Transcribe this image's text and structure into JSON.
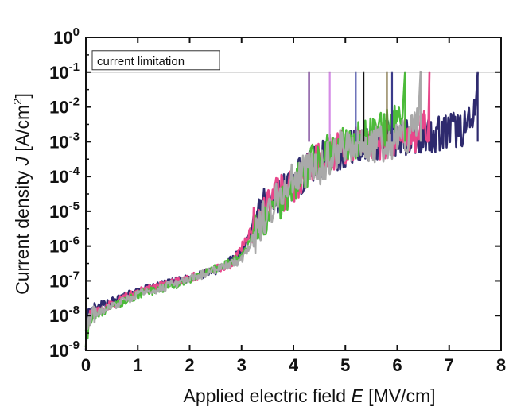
{
  "chart_data": {
    "type": "line",
    "title": "",
    "xlabel_parts": [
      "Applied electric field ",
      "E",
      " [MV/cm]"
    ],
    "ylabel_parts": [
      "Current density ",
      "J",
      " [A/cm",
      "2",
      "]"
    ],
    "xlim": [
      0,
      8
    ],
    "ylim": [
      1e-09,
      1
    ],
    "yscale": "log",
    "x_ticks": [
      0,
      1,
      2,
      3,
      4,
      5,
      6,
      7,
      8
    ],
    "y_ticks": [
      {
        "value": 1e-09,
        "base": "10",
        "exp": "-9"
      },
      {
        "value": 1e-08,
        "base": "10",
        "exp": "-8"
      },
      {
        "value": 1e-07,
        "base": "10",
        "exp": "-7"
      },
      {
        "value": 1e-06,
        "base": "10",
        "exp": "-6"
      },
      {
        "value": 1e-05,
        "base": "10",
        "exp": "-5"
      },
      {
        "value": 0.0001,
        "base": "10",
        "exp": "-4"
      },
      {
        "value": 0.001,
        "base": "10",
        "exp": "-3"
      },
      {
        "value": 0.01,
        "base": "10",
        "exp": "-2"
      },
      {
        "value": 0.1,
        "base": "10",
        "exp": "-1"
      },
      {
        "value": 1,
        "base": "10",
        "exp": "0"
      }
    ],
    "grid": false,
    "legend": "none",
    "reference_line": {
      "y": 0.1,
      "label": "current limitation"
    },
    "series": [
      {
        "color": "#2e2a6e",
        "x": [
          0,
          0.05,
          0.3,
          1,
          2,
          2.5,
          3,
          3.2,
          3.5,
          4,
          4.3,
          5,
          5.5,
          6,
          6.5,
          7,
          7.45,
          7.5,
          7.55
        ],
        "y": [
          1e-09,
          9e-09,
          2e-08,
          5e-08,
          1.2e-07,
          2e-07,
          7e-07,
          3e-06,
          2e-05,
          6e-05,
          0.0002,
          0.0006,
          0.001,
          0.0013,
          0.0016,
          0.002,
          0.003,
          0.006,
          0.1
        ]
      },
      {
        "color": "#e8478b",
        "x": [
          0,
          0.1,
          1,
          2,
          2.8,
          3.2,
          3.5,
          4,
          4.5,
          5,
          5.5,
          6,
          6.5,
          6.6,
          6.62
        ],
        "y": [
          3e-09,
          1.1e-08,
          5e-08,
          1.2e-07,
          3e-07,
          3e-06,
          2e-05,
          5e-05,
          0.0003,
          0.0007,
          0.001,
          0.0013,
          0.002,
          0.003,
          0.1
        ]
      },
      {
        "color": "#4cbb3a",
        "x": [
          0,
          0.1,
          1,
          2,
          3,
          3.3,
          4,
          4.5,
          5,
          5.5,
          5.9,
          6.1,
          6.15
        ],
        "y": [
          2e-09,
          9e-09,
          4e-08,
          1e-07,
          5e-07,
          3e-06,
          6e-05,
          0.0004,
          0.0008,
          0.0015,
          0.003,
          0.005,
          0.1
        ]
      },
      {
        "color": "#a9a9a9",
        "x": [
          0,
          0.1,
          1,
          2,
          3,
          3.5,
          4,
          4.5,
          5,
          5.5,
          6,
          6.3,
          6.4,
          6.45
        ],
        "y": [
          4e-09,
          1e-08,
          4e-08,
          1.1e-07,
          4e-07,
          1e-05,
          0.0001,
          0.0002,
          0.001,
          0.0008,
          0.001,
          0.002,
          0.003,
          0.11
        ]
      }
    ],
    "breakdown_spikes": [
      {
        "x": 4.3,
        "color": "#6a2b8a"
      },
      {
        "x": 4.7,
        "color": "#d58be6"
      },
      {
        "x": 5.2,
        "color": "#4b52a8"
      },
      {
        "x": 5.35,
        "color": "#111111"
      },
      {
        "x": 5.8,
        "color": "#7a6a3a"
      },
      {
        "x": 5.9,
        "color": "#3a3a8a"
      },
      {
        "x": 6.15,
        "color": "#4cbb3a"
      },
      {
        "x": 6.45,
        "color": "#a9a9a9"
      },
      {
        "x": 6.62,
        "color": "#e8478b"
      },
      {
        "x": 7.55,
        "color": "#2e2a6e"
      }
    ]
  }
}
